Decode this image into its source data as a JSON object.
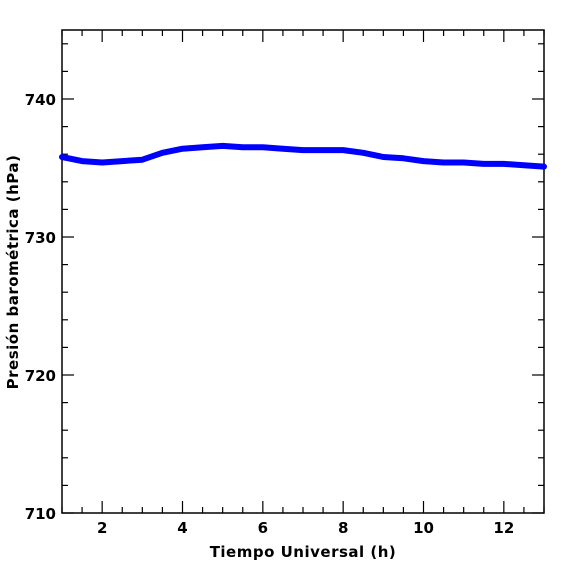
{
  "chart_data": {
    "type": "line",
    "xlabel": "Tiempo Universal (h)",
    "ylabel": "Presión barométrica (hPa)",
    "xlim": [
      1,
      13
    ],
    "ylim": [
      710,
      745
    ],
    "x_ticks": [
      2,
      4,
      6,
      8,
      10,
      12
    ],
    "y_ticks": [
      710,
      720,
      730,
      740
    ],
    "grid": false,
    "legend": "none",
    "series": [
      {
        "color": "#0000ff",
        "x": [
          1.0,
          1.5,
          2.0,
          2.5,
          3.0,
          3.5,
          4.0,
          4.5,
          5.0,
          5.5,
          6.0,
          6.5,
          7.0,
          7.5,
          8.0,
          8.5,
          9.0,
          9.5,
          10.0,
          10.5,
          11.0,
          11.5,
          12.0,
          12.5,
          13.0
        ],
        "values": [
          735.8,
          735.5,
          735.4,
          735.5,
          735.6,
          736.1,
          736.4,
          736.5,
          736.6,
          736.5,
          736.5,
          736.4,
          736.3,
          736.3,
          736.3,
          736.1,
          735.8,
          735.7,
          735.5,
          735.4,
          735.4,
          735.3,
          735.3,
          735.2,
          735.1
        ]
      }
    ]
  }
}
